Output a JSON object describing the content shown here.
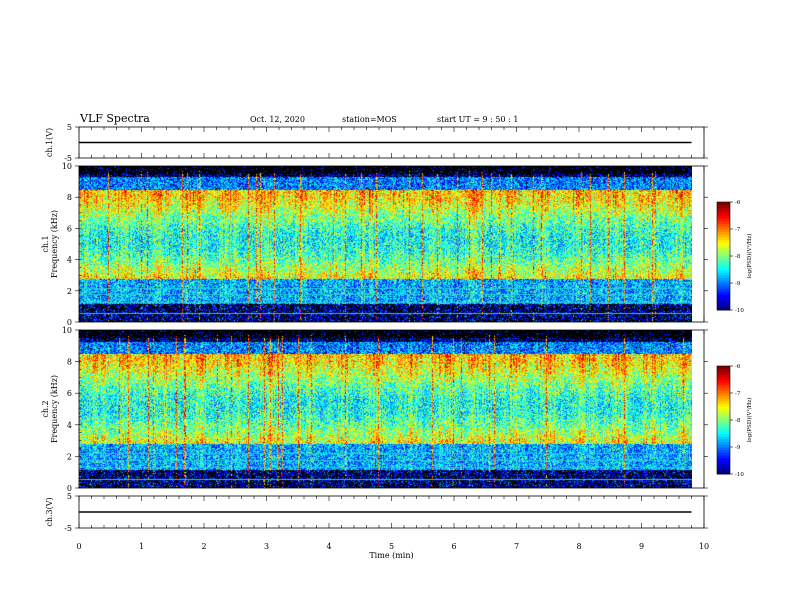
{
  "header": {
    "title": "VLF Spectra",
    "date": "Oct. 12, 2020",
    "station": "station=MOS",
    "start": "start  UT =   9 : 50 : 1"
  },
  "chart_data": [
    {
      "type": "line",
      "name": "waveform-ch1",
      "ylabel": "ch.1(V)",
      "ylim": [
        -5,
        5
      ],
      "yticks": [
        "5",
        "-5"
      ],
      "xlim": [
        0,
        10
      ],
      "x": [
        0,
        9.8
      ],
      "y": [
        0,
        0
      ]
    },
    {
      "type": "heatmap",
      "name": "spectrogram-ch1",
      "ylabel": "ch.1\nFrequency (kHz)",
      "ylim": [
        0,
        10
      ],
      "yticks": [
        "0",
        "2",
        "4",
        "6",
        "8",
        "10"
      ],
      "xlim": [
        0,
        10
      ],
      "data_xmax": 9.8,
      "colorbar": {
        "label": "log(PSD)(V²/Hz)",
        "range": [
          -10,
          -6
        ],
        "ticks": [
          "-6",
          "-7",
          "-8",
          "-9",
          "-10"
        ]
      }
    },
    {
      "type": "heatmap",
      "name": "spectrogram-ch2",
      "ylabel": "ch.2\nFrequency (kHz)",
      "ylim": [
        0,
        10
      ],
      "yticks": [
        "0",
        "2",
        "4",
        "6",
        "8",
        "10"
      ],
      "xlim": [
        0,
        10
      ],
      "data_xmax": 9.8,
      "colorbar": {
        "label": "log(PSD)(V²/Hz)",
        "range": [
          -10,
          -6
        ],
        "ticks": [
          "-6",
          "-7",
          "-8",
          "-9",
          "-10"
        ]
      }
    },
    {
      "type": "line",
      "name": "waveform-ch3",
      "ylabel": "ch.3(V)",
      "ylim": [
        -5,
        5
      ],
      "yticks": [
        "5",
        "-5"
      ],
      "xlim": [
        0,
        10
      ],
      "x": [
        0,
        9.8
      ],
      "y": [
        0,
        0
      ]
    }
  ],
  "xaxis": {
    "label": "Time (min)",
    "ticks": [
      "0",
      "1",
      "2",
      "3",
      "4",
      "5",
      "6",
      "7",
      "8",
      "9",
      "10"
    ]
  }
}
